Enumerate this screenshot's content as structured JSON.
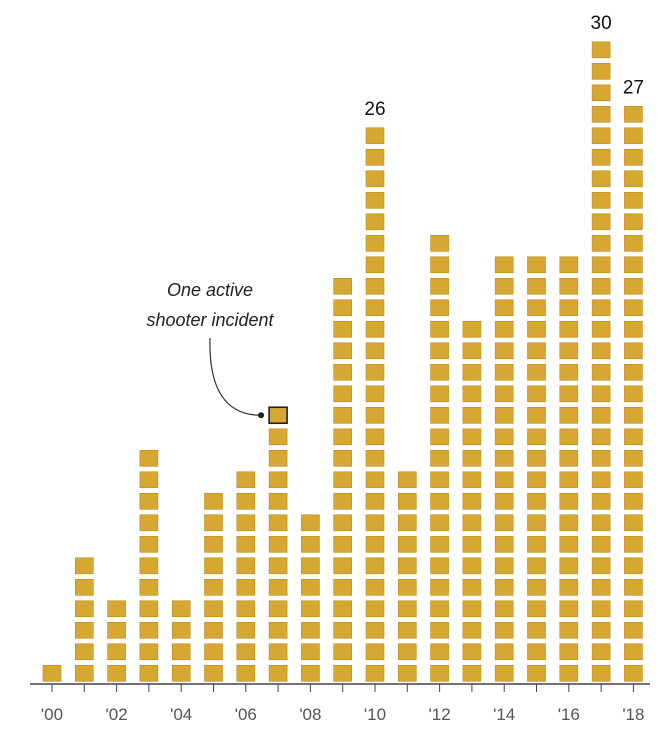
{
  "chart_data": {
    "type": "bar",
    "style": "unit-stacked-squares",
    "categories": [
      "2000",
      "2001",
      "2002",
      "2003",
      "2004",
      "2005",
      "2006",
      "2007",
      "2008",
      "2009",
      "2010",
      "2011",
      "2012",
      "2013",
      "2014",
      "2015",
      "2016",
      "2017",
      "2018"
    ],
    "values": [
      1,
      6,
      4,
      11,
      4,
      9,
      10,
      13,
      8,
      19,
      26,
      10,
      21,
      17,
      20,
      20,
      20,
      30,
      27
    ],
    "tick_labels": [
      "'00",
      "'02",
      "'04",
      "'06",
      "'08",
      "'10",
      "'12",
      "'14",
      "'16",
      "'18"
    ],
    "value_labels": [
      {
        "category": "2010",
        "text": "26"
      },
      {
        "category": "2017",
        "text": "30"
      },
      {
        "category": "2018",
        "text": "27"
      }
    ],
    "annotation": {
      "line1": "One active",
      "line2": "shooter incident",
      "target_category": "2007"
    },
    "ylim": [
      0,
      30
    ],
    "grid": false,
    "legend": "none",
    "colors": {
      "unit_fill": "#d6a731",
      "unit_stroke": "#b88b1b",
      "axis": "#444444",
      "tick_text": "#555555"
    }
  }
}
